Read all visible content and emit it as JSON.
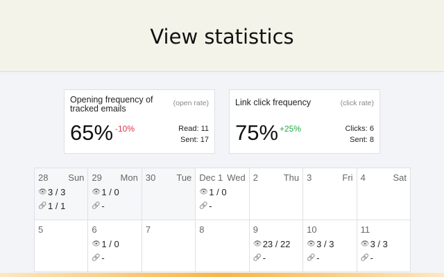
{
  "header": {
    "title": "View statistics"
  },
  "cards": [
    {
      "title": "Opening frequency of tracked emails",
      "subtitle": "(open rate)",
      "value": "65%",
      "change": "-10%",
      "change_color": "#e0344a",
      "stat1": "Read: 11",
      "stat2": "Sent: 17"
    },
    {
      "title": "Link click frequency",
      "subtitle": "(click rate)",
      "value": "75%",
      "change": "+25%",
      "change_color": "#27a844",
      "stat1": "Clicks: 6",
      "stat2": "Sent: 8"
    }
  ],
  "calendar": {
    "days": [
      {
        "date": "28",
        "day": "Sun",
        "opens": "3 / 3",
        "clicks": "1 / 1",
        "prev": true
      },
      {
        "date": "29",
        "day": "Mon",
        "opens": "1 / 0",
        "clicks": "-",
        "prev": true
      },
      {
        "date": "30",
        "day": "Tue",
        "prev": true
      },
      {
        "date": "Dec 1",
        "day": "Wed",
        "opens": "1 / 0",
        "clicks": "-"
      },
      {
        "date": "2",
        "day": "Thu"
      },
      {
        "date": "3",
        "day": "Fri"
      },
      {
        "date": "4",
        "day": "Sat"
      },
      {
        "date": "5"
      },
      {
        "date": "6",
        "opens": "1 / 0",
        "clicks": "-"
      },
      {
        "date": "7"
      },
      {
        "date": "8"
      },
      {
        "date": "9",
        "opens": "23 / 22",
        "clicks": "-"
      },
      {
        "date": "10",
        "opens": "3 / 3",
        "clicks": "-"
      },
      {
        "date": "11",
        "opens": "3 / 3",
        "clicks": "-"
      }
    ]
  },
  "icons": {
    "opens": "eye-icon",
    "clicks": "link-icon"
  }
}
